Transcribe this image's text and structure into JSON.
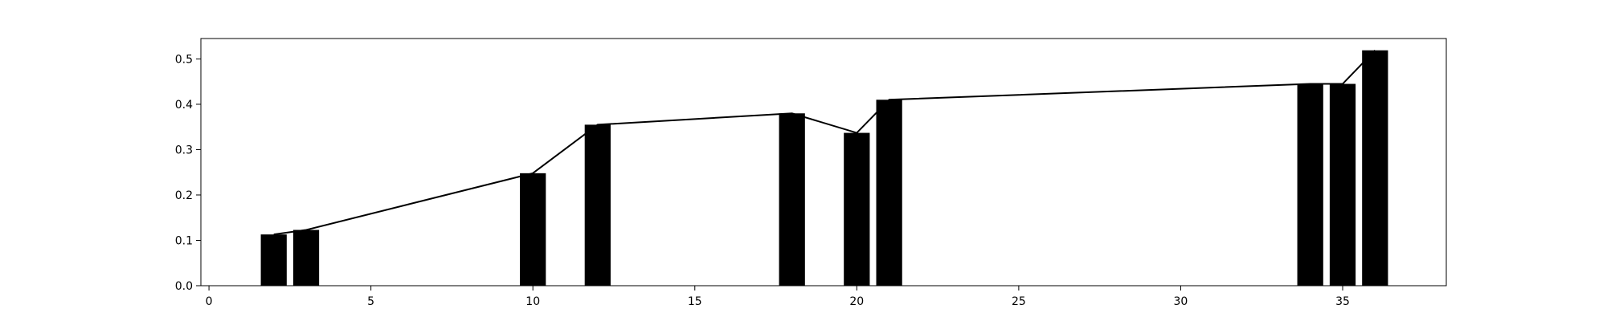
{
  "chart_data": {
    "type": "bar",
    "title": "",
    "xlabel": "",
    "ylabel": "",
    "x": [
      2,
      3,
      10,
      12,
      18,
      20,
      21,
      34,
      35,
      36
    ],
    "values": [
      0.113,
      0.123,
      0.248,
      0.355,
      0.38,
      0.337,
      0.41,
      0.445,
      0.445,
      0.519
    ],
    "line_values": [
      0.113,
      0.123,
      0.248,
      0.355,
      0.38,
      0.337,
      0.41,
      0.445,
      0.445,
      0.519
    ],
    "bar_width": 0.8,
    "xlim": [
      -0.25,
      38.2
    ],
    "ylim": [
      0,
      0.545
    ],
    "xticks": [
      0,
      5,
      10,
      15,
      20,
      25,
      30,
      35
    ],
    "yticks": [
      0.0,
      0.1,
      0.2,
      0.3,
      0.4,
      0.5
    ],
    "xtick_labels": [
      "0",
      "5",
      "10",
      "15",
      "20",
      "25",
      "30",
      "35"
    ],
    "ytick_labels": [
      "0.0",
      "0.1",
      "0.2",
      "0.3",
      "0.4",
      "0.5"
    ],
    "grid": false,
    "bar_color": "#000000",
    "line_color": "#000000"
  }
}
